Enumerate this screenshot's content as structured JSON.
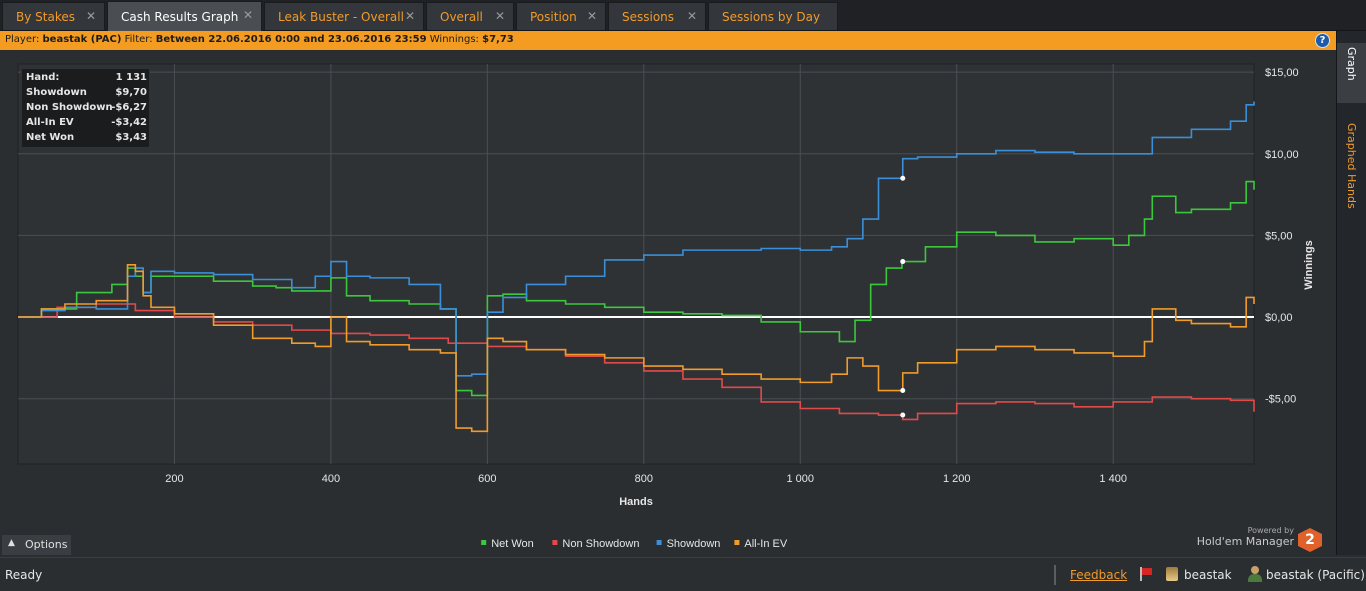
{
  "tabs": [
    {
      "label": "By Stakes",
      "active": false
    },
    {
      "label": "Cash Results Graph",
      "active": true
    },
    {
      "label": "Leak Buster - Overall",
      "active": false
    },
    {
      "label": "Overall",
      "active": false
    },
    {
      "label": "Position",
      "active": false
    },
    {
      "label": "Sessions",
      "active": false
    },
    {
      "label": "Sessions by Day",
      "active": false
    }
  ],
  "filter_bar": {
    "player_label": "Player:",
    "player_value": "beastak (PAC)",
    "filter_label": "Filter:",
    "filter_value": "Between 22.06.2016 0:00 and 23.06.2016 23:59",
    "winnings_label": "Winnings:",
    "winnings_value": "$7,73",
    "help_glyph": "?"
  },
  "side_panel": {
    "graph_tab": "Graph",
    "graphed_hands_tab": "Graphed Hands"
  },
  "stats": [
    {
      "label": "Hand:",
      "value": "1 131"
    },
    {
      "label": "Showdown",
      "value": "$9,70"
    },
    {
      "label": "Non Showdown",
      "value": "-$6,27"
    },
    {
      "label": "All-In EV",
      "value": "-$3,42"
    },
    {
      "label": "Net Won",
      "value": "$3,43"
    }
  ],
  "options": {
    "label": "Options",
    "icon": "chevron-up-icon"
  },
  "powered": {
    "line1": "Powered by",
    "line2": "Hold'em Manager",
    "badge": "2"
  },
  "status_bar": {
    "status": "Ready",
    "feedback": "Feedback",
    "user": "beastak",
    "user_site": "beastak (Pacific)"
  },
  "chart_data": {
    "type": "line",
    "xlabel": "Hands",
    "ylabel": "Winnings",
    "xlim": [
      0,
      1580
    ],
    "ylim": [
      -9,
      15.5
    ],
    "xticks": [
      200,
      400,
      600,
      800,
      1000,
      1200,
      1400
    ],
    "xtick_labels": [
      "200",
      "400",
      "600",
      "800",
      "1 000",
      "1 200",
      "1 400"
    ],
    "yticks": [
      15,
      10,
      5,
      0,
      -5
    ],
    "ytick_labels": [
      "$15,00",
      "$10,00",
      "$5,00",
      "$0,00",
      "-$5,00"
    ],
    "grid": true,
    "legend_position": "bottom-center",
    "hover_x": 1131,
    "series": [
      {
        "name": "Net Won",
        "color": "#3cc83c",
        "x": [
          0,
          30,
          60,
          75,
          100,
          120,
          140,
          150,
          160,
          170,
          200,
          250,
          300,
          330,
          350,
          400,
          420,
          450,
          500,
          540,
          560,
          580,
          600,
          620,
          650,
          700,
          750,
          800,
          850,
          900,
          950,
          1000,
          1050,
          1070,
          1090,
          1110,
          1130,
          1160,
          1200,
          1250,
          1300,
          1350,
          1400,
          1420,
          1440,
          1450,
          1480,
          1500,
          1550,
          1570,
          1580
        ],
        "y": [
          0,
          0.5,
          0.5,
          1.5,
          1.5,
          2.0,
          3.0,
          2.5,
          1.5,
          2.5,
          2.5,
          2.2,
          1.9,
          1.8,
          1.6,
          2.4,
          1.3,
          1.0,
          0.8,
          0.5,
          -4.5,
          -4.8,
          1.3,
          1.4,
          1.0,
          0.8,
          0.6,
          0.3,
          0.2,
          0.1,
          -0.3,
          -0.9,
          -1.5,
          -0.2,
          2.0,
          3.0,
          3.4,
          4.3,
          5.2,
          5.0,
          4.6,
          4.8,
          4.4,
          5.0,
          6.0,
          7.4,
          6.4,
          6.6,
          7.0,
          8.3,
          7.8
        ]
      },
      {
        "name": "Non Showdown",
        "color": "#e24a4a",
        "x": [
          0,
          50,
          100,
          150,
          200,
          250,
          300,
          350,
          400,
          450,
          500,
          550,
          600,
          650,
          700,
          750,
          800,
          850,
          900,
          950,
          1000,
          1050,
          1100,
          1131,
          1150,
          1200,
          1250,
          1300,
          1350,
          1400,
          1450,
          1500,
          1550,
          1580
        ],
        "y": [
          0,
          0.6,
          0.8,
          0.4,
          0,
          -0.3,
          -0.5,
          -0.8,
          -1.0,
          -1.1,
          -1.3,
          -1.6,
          -1.8,
          -2.0,
          -2.4,
          -2.8,
          -3.3,
          -3.8,
          -4.3,
          -5.2,
          -5.6,
          -5.9,
          -6.0,
          -6.27,
          -5.9,
          -5.3,
          -5.2,
          -5.3,
          -5.5,
          -5.2,
          -4.9,
          -5.0,
          -5.1,
          -5.8
        ]
      },
      {
        "name": "Showdown",
        "color": "#3a8fd8",
        "x": [
          0,
          30,
          60,
          100,
          140,
          150,
          160,
          170,
          200,
          250,
          300,
          350,
          380,
          400,
          420,
          450,
          500,
          540,
          560,
          580,
          600,
          620,
          650,
          700,
          750,
          800,
          850,
          900,
          950,
          1000,
          1040,
          1060,
          1080,
          1100,
          1131,
          1150,
          1200,
          1250,
          1300,
          1350,
          1400,
          1450,
          1500,
          1550,
          1570,
          1580
        ],
        "y": [
          0,
          0.4,
          0.6,
          0.5,
          2.5,
          3.0,
          1.5,
          2.8,
          2.7,
          2.6,
          2.3,
          1.8,
          2.5,
          3.4,
          2.5,
          2.4,
          2.0,
          0.5,
          -3.6,
          -3.5,
          0.3,
          1.2,
          2.0,
          2.5,
          3.5,
          3.8,
          4.1,
          4.1,
          4.2,
          4.1,
          4.3,
          4.8,
          6.0,
          8.5,
          9.7,
          9.8,
          10.0,
          10.2,
          10.1,
          10.0,
          10.0,
          11.0,
          11.5,
          12.0,
          13.0,
          13.2
        ]
      },
      {
        "name": "All-In EV",
        "color": "#f09b2a",
        "x": [
          0,
          30,
          60,
          100,
          140,
          150,
          160,
          170,
          200,
          250,
          300,
          350,
          380,
          400,
          420,
          450,
          500,
          540,
          560,
          580,
          600,
          620,
          650,
          700,
          750,
          800,
          850,
          900,
          950,
          1000,
          1040,
          1060,
          1080,
          1100,
          1131,
          1150,
          1200,
          1250,
          1300,
          1350,
          1400,
          1440,
          1450,
          1480,
          1500,
          1550,
          1570,
          1580
        ],
        "y": [
          0,
          0.5,
          0.8,
          1.0,
          3.2,
          2.8,
          1.3,
          0.6,
          0.2,
          -0.5,
          -1.3,
          -1.6,
          -1.8,
          0,
          -1.5,
          -1.7,
          -2.0,
          -2.2,
          -6.8,
          -7.0,
          -1.3,
          -1.5,
          -2.0,
          -2.3,
          -2.5,
          -3.0,
          -3.2,
          -3.5,
          -3.8,
          -4.0,
          -3.5,
          -2.5,
          -3.0,
          -4.5,
          -3.42,
          -2.8,
          -2.0,
          -1.8,
          -2.0,
          -2.2,
          -2.4,
          -1.5,
          0.5,
          -0.2,
          -0.4,
          -0.6,
          1.2,
          0.8
        ]
      }
    ]
  }
}
